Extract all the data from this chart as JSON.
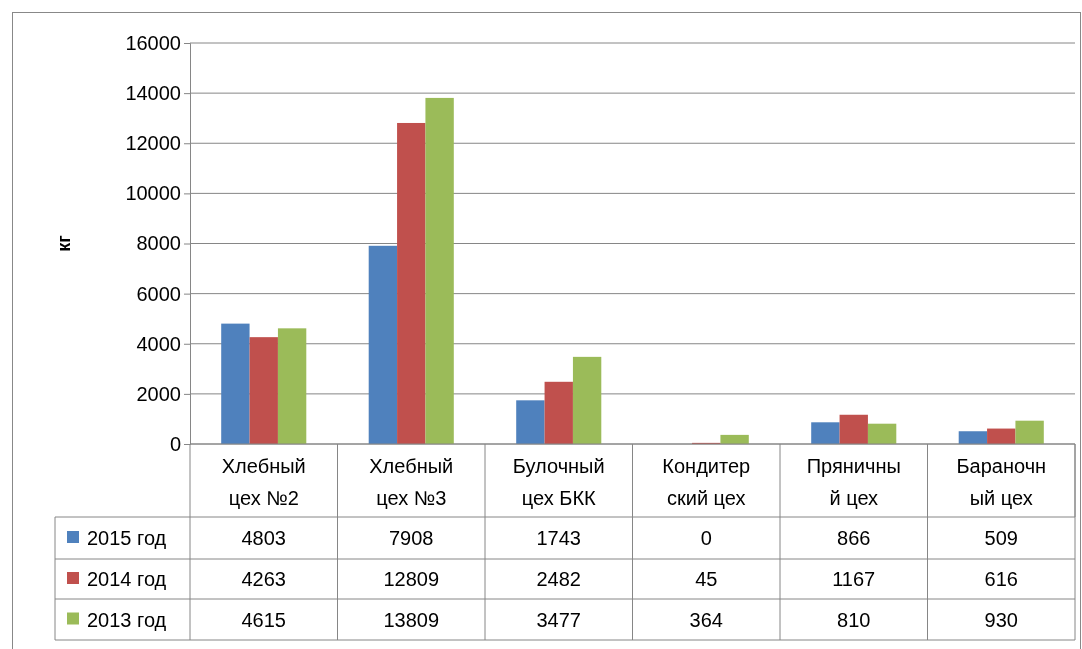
{
  "chart_data": {
    "type": "bar",
    "ylabel": "кг",
    "categories": [
      "Хлебный цех №2",
      "Хлебный цех №3",
      "Булочный цех БКК",
      "Кондитерский цех",
      "Пряничный цех",
      "Бараночный цех"
    ],
    "series": [
      {
        "name": "2015 год",
        "color": "#4f81bd",
        "values": [
          4803,
          7908,
          1743,
          0,
          866,
          509
        ]
      },
      {
        "name": "2014 год",
        "color": "#c0504d",
        "values": [
          4263,
          12809,
          2482,
          45,
          1167,
          616
        ]
      },
      {
        "name": "2013 год",
        "color": "#9bbb59",
        "values": [
          4615,
          13809,
          3477,
          364,
          810,
          930
        ]
      }
    ],
    "ylim": [
      0,
      16000
    ],
    "yticks": [
      0,
      2000,
      4000,
      6000,
      8000,
      10000,
      12000,
      14000,
      16000
    ],
    "grid": "y",
    "legend": "bottom",
    "data_labels": true
  }
}
